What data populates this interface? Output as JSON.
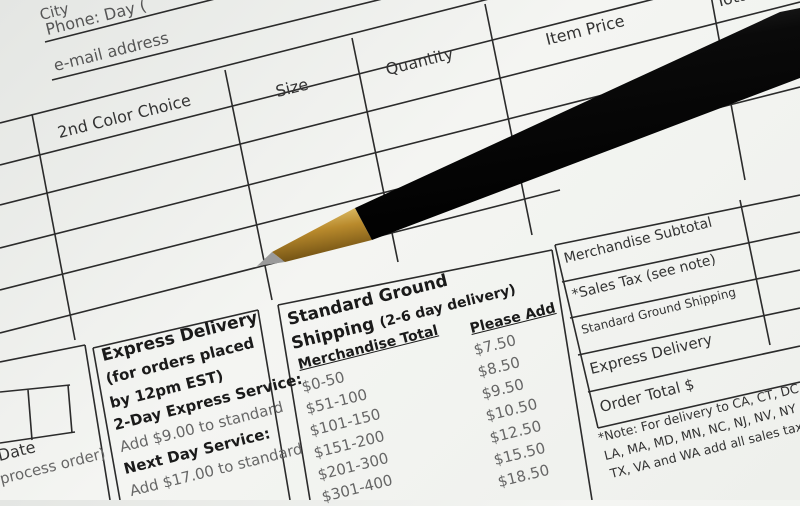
{
  "header_fields": {
    "city": "City",
    "phone": "Phone: Day (",
    "email": "e-mail address",
    "total": "Total"
  },
  "table_headers": [
    "2nd Color Choice",
    "Size",
    "Quantity",
    "Item Price"
  ],
  "date_box": {
    "label": "Date",
    "sub": "process order)"
  },
  "express": {
    "title": "Express Delivery",
    "line1": "(for orders placed",
    "line2": "by 12pm EST)",
    "two_day": "2-Day Express Service:",
    "two_day_add": "Add $9.00 to standard",
    "next_day": "Next Day Service:",
    "next_day_add": "Add $17.00 to standard"
  },
  "standard": {
    "title1": "Standard Ground",
    "title2": "Shipping",
    "title2_sub": "(2-6 day delivery)",
    "col_total": "Merchandise Total",
    "col_add": "Please Add",
    "rows": [
      {
        "range": "$0-50",
        "add": "$7.50"
      },
      {
        "range": "$51-100",
        "add": "$8.50"
      },
      {
        "range": "$101-150",
        "add": "$9.50"
      },
      {
        "range": "$151-200",
        "add": "$10.50"
      },
      {
        "range": "$201-300",
        "add": "$12.50"
      },
      {
        "range": "$301-400",
        "add": "$15.50"
      },
      {
        "range": "",
        "add": "$18.50"
      }
    ]
  },
  "totals": {
    "subtotal": "Merchandise Subtotal",
    "sales_tax": "*Sales Tax (see note)",
    "ground": "Standard Ground Shipping",
    "express": "Express Delivery",
    "order_total": "Order Total $"
  },
  "note": {
    "line1": "*Note: For delivery to  CA, CT, DC",
    "line2": "LA, MA, MD, MN, NC, NJ, NV, NY",
    "line3": "TX, VA and WA add all sales taxe"
  },
  "colors": {
    "paper": "#f1f2ef",
    "ink": "#2a2a2a",
    "pen": "#0d0d0d",
    "pen_band": "#c9a13c"
  }
}
